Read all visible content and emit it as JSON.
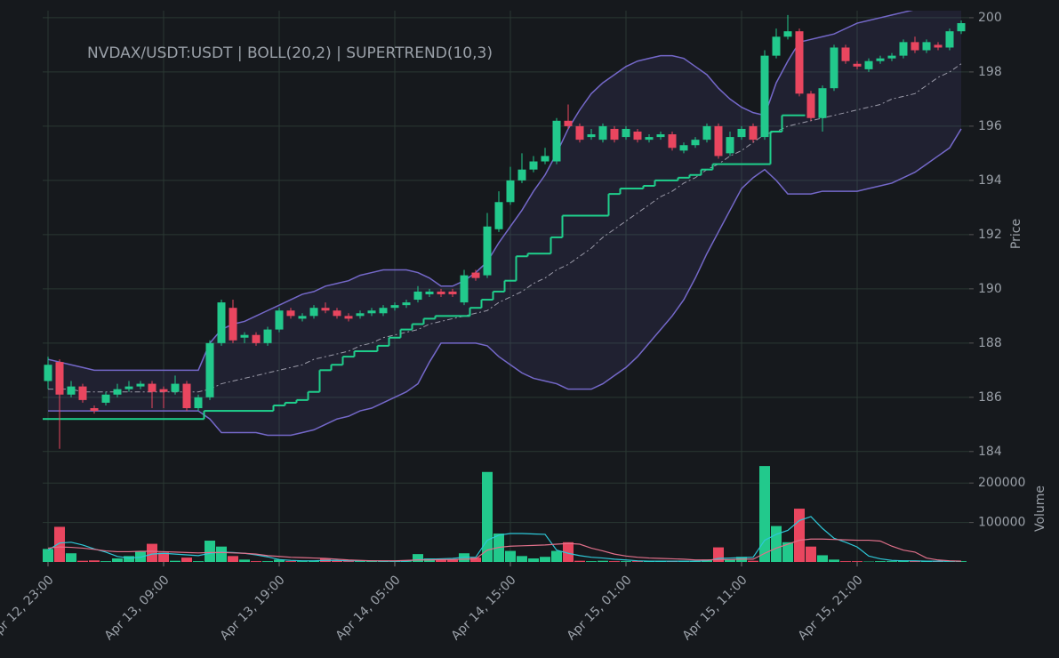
{
  "chart_data": {
    "type": "candlestick",
    "title": "NVDAX/USDT:USDT | BOLL(20,2) | SUPERTREND(10,3)",
    "y_label": "Price",
    "categories": [
      "Apr 12, 23:00",
      null,
      null,
      null,
      null,
      null,
      null,
      null,
      null,
      null,
      "Apr 13, 09:00",
      null,
      null,
      null,
      null,
      null,
      null,
      null,
      null,
      null,
      "Apr 13, 19:00",
      null,
      null,
      null,
      null,
      null,
      null,
      null,
      null,
      null,
      "Apr 14, 05:00",
      null,
      null,
      null,
      null,
      null,
      null,
      null,
      null,
      null,
      "Apr 14, 15:00",
      null,
      null,
      null,
      null,
      null,
      null,
      null,
      null,
      null,
      "Apr 15, 01:00",
      null,
      null,
      null,
      null,
      null,
      null,
      null,
      null,
      null,
      "Apr 15, 11:00",
      null,
      null,
      null,
      null,
      null,
      null,
      null,
      null,
      null,
      "Apr 15, 21:00",
      null,
      null,
      null,
      null,
      null,
      null,
      null,
      null,
      null
    ],
    "open": [
      186.6,
      187.3,
      186.1,
      186.4,
      185.6,
      185.8,
      186.1,
      186.3,
      186.4,
      186.5,
      186.3,
      186.2,
      186.5,
      185.6,
      186.0,
      188.0,
      189.3,
      188.2,
      188.3,
      188.0,
      188.5,
      189.2,
      188.9,
      189.0,
      189.3,
      189.2,
      189.0,
      189.0,
      189.1,
      189.1,
      189.3,
      189.4,
      189.6,
      189.8,
      189.9,
      189.9,
      189.5,
      190.6,
      190.5,
      192.2,
      193.2,
      194.0,
      194.4,
      194.7,
      194.7,
      196.2,
      196.0,
      195.6,
      195.5,
      195.9,
      195.6,
      195.8,
      195.5,
      195.6,
      195.7,
      195.1,
      195.3,
      195.5,
      196.0,
      195.0,
      195.6,
      196.0,
      195.6,
      198.6,
      199.3,
      199.5,
      197.2,
      196.3,
      197.4,
      198.9,
      198.3,
      198.1,
      198.4,
      198.5,
      198.6,
      199.1,
      198.8,
      199.0,
      198.9,
      199.5
    ],
    "high": [
      187.5,
      187.4,
      186.6,
      186.5,
      185.7,
      186.2,
      186.5,
      186.6,
      186.6,
      186.6,
      186.4,
      186.8,
      186.6,
      186.1,
      188.1,
      189.6,
      189.6,
      188.4,
      188.4,
      188.6,
      189.3,
      189.3,
      189.1,
      189.4,
      189.5,
      189.3,
      189.1,
      189.2,
      189.3,
      189.4,
      189.5,
      189.6,
      190.1,
      190.0,
      190.0,
      190.0,
      190.7,
      190.7,
      192.8,
      193.6,
      194.5,
      195.0,
      194.9,
      195.2,
      196.3,
      196.8,
      196.1,
      195.9,
      196.1,
      196.0,
      196.0,
      195.9,
      195.7,
      195.8,
      195.8,
      195.4,
      195.6,
      196.1,
      196.1,
      195.8,
      196.0,
      196.1,
      198.8,
      199.6,
      200.1,
      199.6,
      197.3,
      197.5,
      199.0,
      199.0,
      198.4,
      198.5,
      198.6,
      198.7,
      199.2,
      199.3,
      199.2,
      199.1,
      199.6,
      199.9
    ],
    "low": [
      186.3,
      184.1,
      186.0,
      185.8,
      185.4,
      185.7,
      186.0,
      186.2,
      186.3,
      185.6,
      185.6,
      186.1,
      185.5,
      185.5,
      185.9,
      187.9,
      188.0,
      188.0,
      187.9,
      187.9,
      188.4,
      188.9,
      188.8,
      188.9,
      189.1,
      188.9,
      188.8,
      188.9,
      189.0,
      189.0,
      189.2,
      189.3,
      189.5,
      189.7,
      189.7,
      189.7,
      189.4,
      190.3,
      190.4,
      192.1,
      193.1,
      193.9,
      194.3,
      194.6,
      194.6,
      195.9,
      195.4,
      195.5,
      195.4,
      195.4,
      195.5,
      195.4,
      195.4,
      195.5,
      195.1,
      195.0,
      195.2,
      195.4,
      194.8,
      194.9,
      195.5,
      195.4,
      195.5,
      198.5,
      199.2,
      197.1,
      196.2,
      195.8,
      197.3,
      198.3,
      198.1,
      198.0,
      198.3,
      198.4,
      198.5,
      198.7,
      198.7,
      198.8,
      198.8,
      199.4
    ],
    "close": [
      187.2,
      186.1,
      186.4,
      185.9,
      185.5,
      186.1,
      186.3,
      186.4,
      186.5,
      186.2,
      186.2,
      186.5,
      185.6,
      186.0,
      188.0,
      189.5,
      188.1,
      188.3,
      188.0,
      188.5,
      189.2,
      189.0,
      189.0,
      189.3,
      189.2,
      189.0,
      188.9,
      189.1,
      189.2,
      189.3,
      189.4,
      189.5,
      189.9,
      189.9,
      189.8,
      189.8,
      190.5,
      190.4,
      192.3,
      193.2,
      194.0,
      194.4,
      194.7,
      194.9,
      196.2,
      196.0,
      195.5,
      195.7,
      196.0,
      195.5,
      195.9,
      195.5,
      195.6,
      195.7,
      195.2,
      195.3,
      195.5,
      196.0,
      194.9,
      195.6,
      195.9,
      195.5,
      198.6,
      199.3,
      199.5,
      197.2,
      196.3,
      197.4,
      198.9,
      198.4,
      198.2,
      198.4,
      198.5,
      198.6,
      199.1,
      198.8,
      199.1,
      198.9,
      199.5,
      199.8
    ],
    "up_color": "#22c98c",
    "down_color": "#e9465f",
    "overlays": [
      {
        "color": "#7468c9",
        "style": "solid",
        "values": [
          187.4,
          187.3,
          187.2,
          187.1,
          187.0,
          187.0,
          187.0,
          187.0,
          187.0,
          187.0,
          187.0,
          187.0,
          187.0,
          187.0,
          188.0,
          188.5,
          188.7,
          188.8,
          189.0,
          189.2,
          189.4,
          189.6,
          189.8,
          189.9,
          190.1,
          190.2,
          190.3,
          190.5,
          190.6,
          190.7,
          190.7,
          190.7,
          190.6,
          190.4,
          190.1,
          190.1,
          190.3,
          190.6,
          191.0,
          191.7,
          192.3,
          192.9,
          193.6,
          194.2,
          195.0,
          195.9,
          196.6,
          197.2,
          197.6,
          197.9,
          198.2,
          198.4,
          198.5,
          198.6,
          198.6,
          198.5,
          198.2,
          197.9,
          197.4,
          197.0,
          196.7,
          196.5,
          196.4,
          197.6,
          198.4,
          199.1,
          199.2,
          199.3,
          199.4,
          199.6,
          199.8,
          199.9,
          200.0,
          200.1,
          200.2,
          200.3,
          200.4,
          200.4,
          200.5,
          200.5
        ]
      },
      {
        "color": "#9a9aa8",
        "style": "dashed",
        "values": [
          186.3,
          186.3,
          186.3,
          186.2,
          186.2,
          186.2,
          186.2,
          186.2,
          186.2,
          186.2,
          186.2,
          186.2,
          186.2,
          186.2,
          186.3,
          186.5,
          186.6,
          186.7,
          186.8,
          186.9,
          187.0,
          187.1,
          187.2,
          187.4,
          187.5,
          187.6,
          187.7,
          187.9,
          188.0,
          188.2,
          188.3,
          188.4,
          188.5,
          188.7,
          188.8,
          188.9,
          189.0,
          189.1,
          189.2,
          189.5,
          189.7,
          189.9,
          190.2,
          190.4,
          190.7,
          190.9,
          191.2,
          191.5,
          191.9,
          192.2,
          192.5,
          192.8,
          193.1,
          193.4,
          193.6,
          193.9,
          194.1,
          194.4,
          194.6,
          194.9,
          195.1,
          195.4,
          195.7,
          195.8,
          196.0,
          196.1,
          196.2,
          196.3,
          196.4,
          196.5,
          196.6,
          196.7,
          196.8,
          197.0,
          197.1,
          197.2,
          197.5,
          197.8,
          198.0,
          198.3
        ]
      },
      {
        "color": "#7468c9",
        "style": "solid",
        "values": [
          185.5,
          185.5,
          185.5,
          185.5,
          185.5,
          185.5,
          185.5,
          185.5,
          185.5,
          185.5,
          185.5,
          185.5,
          185.5,
          185.5,
          185.2,
          184.7,
          184.7,
          184.7,
          184.7,
          184.6,
          184.6,
          184.6,
          184.7,
          184.8,
          185.0,
          185.2,
          185.3,
          185.5,
          185.6,
          185.8,
          186.0,
          186.2,
          186.5,
          187.3,
          188.0,
          188.0,
          188.0,
          188.0,
          187.9,
          187.5,
          187.2,
          186.9,
          186.7,
          186.6,
          186.5,
          186.3,
          186.3,
          186.3,
          186.5,
          186.8,
          187.1,
          187.5,
          188.0,
          188.5,
          189.0,
          189.6,
          190.4,
          191.3,
          192.1,
          192.9,
          193.7,
          194.1,
          194.4,
          194.0,
          193.5,
          193.5,
          193.5,
          193.6,
          193.6,
          193.6,
          193.6,
          193.7,
          193.8,
          193.9,
          194.1,
          194.3,
          194.6,
          194.9,
          195.2,
          195.9
        ]
      },
      {
        "color": "#1fcf8c",
        "style": "step",
        "values": [
          185.2,
          185.2,
          185.2,
          185.2,
          185.2,
          185.2,
          185.2,
          185.2,
          185.2,
          185.2,
          185.2,
          185.2,
          185.2,
          185.2,
          185.5,
          185.5,
          185.5,
          185.5,
          185.5,
          185.5,
          185.7,
          185.8,
          185.9,
          186.2,
          187.0,
          187.2,
          187.5,
          187.7,
          187.7,
          187.9,
          188.2,
          188.5,
          188.7,
          188.9,
          189.0,
          189.0,
          189.0,
          189.3,
          189.6,
          189.9,
          190.3,
          191.2,
          191.3,
          191.3,
          191.9,
          192.7,
          192.7,
          192.7,
          192.7,
          193.5,
          193.7,
          193.7,
          193.8,
          194.0,
          194.0,
          194.1,
          194.2,
          194.4,
          194.6,
          194.6,
          194.6,
          194.6,
          194.6,
          195.8,
          196.4,
          196.4,
          null,
          null,
          null,
          null,
          null,
          null,
          null,
          null,
          null,
          null,
          null,
          null,
          null,
          null
        ]
      }
    ],
    "band_fill": "rgba(110,100,200,0.12)",
    "ylim": [
      183.6,
      200.26
    ],
    "yticks": [
      184,
      186,
      188,
      190,
      192,
      194,
      196,
      198,
      200
    ],
    "grid": true,
    "volume": {
      "label": "Volume",
      "values": [
        33000,
        89000,
        22000,
        3000,
        4000,
        2000,
        9000,
        15000,
        26000,
        46000,
        24000,
        3000,
        11000,
        2000,
        54000,
        39000,
        15000,
        6000,
        2000,
        2000,
        6000,
        2000,
        2000,
        3000,
        9000,
        3000,
        2000,
        2000,
        3000,
        2000,
        3000,
        2000,
        20000,
        9000,
        7000,
        6000,
        22000,
        11000,
        228000,
        72000,
        28000,
        15000,
        9000,
        13000,
        28000,
        50000,
        3000,
        2000,
        3000,
        2000,
        2000,
        2000,
        2000,
        2000,
        2000,
        1000,
        2000,
        6000,
        37000,
        6000,
        13000,
        3000,
        243000,
        91000,
        50000,
        135000,
        39000,
        17000,
        6000,
        2000,
        2000,
        1000,
        2000,
        2000,
        4000,
        3000,
        2000,
        2000,
        1000,
        2000
      ],
      "lines": [
        {
          "color": "#2ec8d8",
          "values": [
            30000,
            48000,
            50000,
            43000,
            33000,
            25000,
            14000,
            10000,
            12000,
            20000,
            22000,
            20000,
            18000,
            16000,
            22000,
            25000,
            24000,
            22000,
            18000,
            13000,
            6000,
            4000,
            3000,
            3000,
            4000,
            4000,
            3000,
            3000,
            3000,
            2000,
            2000,
            2000,
            6000,
            7000,
            8000,
            9000,
            12000,
            12000,
            55000,
            68000,
            72000,
            72000,
            71000,
            70000,
            30000,
            22000,
            16000,
            12000,
            10000,
            7000,
            5000,
            3000,
            2000,
            2000,
            2000,
            2000,
            2000,
            3000,
            9000,
            10000,
            11000,
            12000,
            55000,
            70000,
            80000,
            105000,
            115000,
            85000,
            60000,
            50000,
            38000,
            15000,
            8000,
            4000,
            3000,
            3000,
            2000,
            2000,
            2000,
            2000
          ]
        },
        {
          "color": "#e0708a",
          "values": [
            35000,
            38000,
            37000,
            35000,
            32000,
            28000,
            26000,
            26000,
            27000,
            27000,
            26000,
            25000,
            24000,
            23000,
            24000,
            24000,
            23000,
            22000,
            20000,
            16000,
            14000,
            12000,
            11000,
            10000,
            9000,
            7000,
            5000,
            4000,
            3000,
            3000,
            3000,
            4000,
            5000,
            5000,
            6000,
            6000,
            7000,
            8000,
            30000,
            37000,
            40000,
            41000,
            42000,
            43000,
            45000,
            47000,
            45000,
            35000,
            28000,
            20000,
            15000,
            12000,
            10000,
            9000,
            8000,
            7000,
            5000,
            5000,
            6000,
            6000,
            7000,
            7000,
            22000,
            35000,
            45000,
            55000,
            58000,
            58000,
            57000,
            56000,
            55000,
            55000,
            53000,
            40000,
            30000,
            25000,
            10000,
            5000,
            3000,
            2000
          ]
        }
      ],
      "ylim": [
        0,
        250000
      ],
      "yticks": [
        100000,
        200000
      ]
    }
  }
}
